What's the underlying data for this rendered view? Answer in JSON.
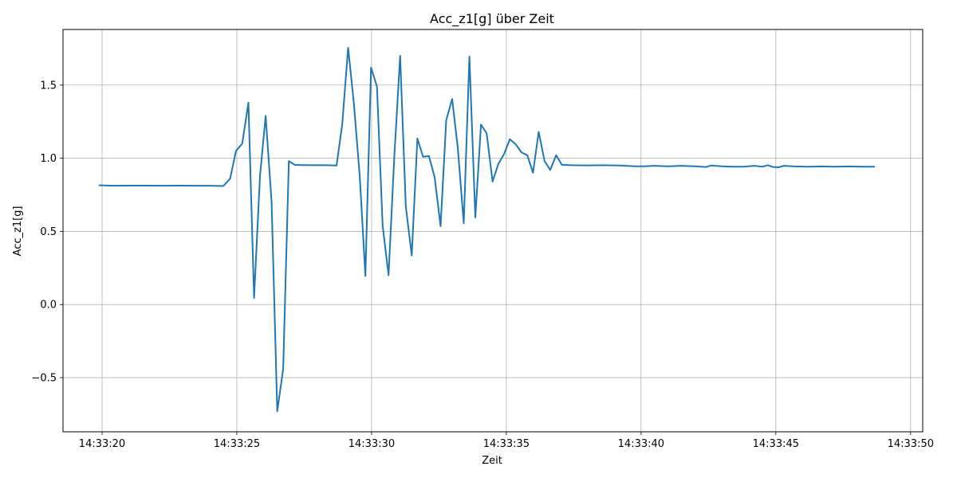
{
  "chart_data": {
    "type": "line",
    "title": "Acc_z1[g] über Zeit",
    "xlabel": "Zeit",
    "ylabel": "Acc_z1[g]",
    "grid": true,
    "x_unit": "time of day",
    "xlim": [
      "14:33:18.55",
      "14:33:50.45"
    ],
    "ylim": [
      -0.87,
      1.88
    ],
    "x_ticks": [
      "14:33:20",
      "14:33:25",
      "14:33:30",
      "14:33:35",
      "14:33:40",
      "14:33:45",
      "14:33:50"
    ],
    "y_ticks": [
      -0.5,
      0.0,
      0.5,
      1.0,
      1.5
    ],
    "y_tick_labels": [
      "−0.5",
      "0.0",
      "0.5",
      "1.0",
      "1.5"
    ],
    "series": [
      {
        "color": "#1f77b4",
        "points": [
          [
            "14:33:19.90",
            0.815
          ],
          [
            "14:33:20.40",
            0.812
          ],
          [
            "14:33:21.00",
            0.813
          ],
          [
            "14:33:21.60",
            0.813
          ],
          [
            "14:33:22.20",
            0.812
          ],
          [
            "14:33:22.80",
            0.813
          ],
          [
            "14:33:23.40",
            0.812
          ],
          [
            "14:33:24.00",
            0.812
          ],
          [
            "14:33:24.50",
            0.81
          ],
          [
            "14:33:24.75",
            0.86
          ],
          [
            "14:33:24.97",
            1.05
          ],
          [
            "14:33:25.20",
            1.1
          ],
          [
            "14:33:25.43",
            1.38
          ],
          [
            "14:33:25.64",
            0.045
          ],
          [
            "14:33:25.86",
            0.88
          ],
          [
            "14:33:26.07",
            1.29
          ],
          [
            "14:33:26.29",
            0.7
          ],
          [
            "14:33:26.50",
            -0.73
          ],
          [
            "14:33:26.72",
            -0.44
          ],
          [
            "14:33:26.93",
            0.98
          ],
          [
            "14:33:27.15",
            0.955
          ],
          [
            "14:33:27.40",
            0.953
          ],
          [
            "14:33:27.80",
            0.952
          ],
          [
            "14:33:28.30",
            0.952
          ],
          [
            "14:33:28.70",
            0.95
          ],
          [
            "14:33:28.91",
            1.23
          ],
          [
            "14:33:29.13",
            1.755
          ],
          [
            "14:33:29.34",
            1.38
          ],
          [
            "14:33:29.56",
            0.88
          ],
          [
            "14:33:29.77",
            0.195
          ],
          [
            "14:33:29.98",
            1.62
          ],
          [
            "14:33:30.20",
            1.49
          ],
          [
            "14:33:30.41",
            0.54
          ],
          [
            "14:33:30.63",
            0.2
          ],
          [
            "14:33:30.84",
            1.0
          ],
          [
            "14:33:31.06",
            1.7
          ],
          [
            "14:33:31.27",
            0.67
          ],
          [
            "14:33:31.49",
            0.335
          ],
          [
            "14:33:31.70",
            1.135
          ],
          [
            "14:33:31.91",
            1.01
          ],
          [
            "14:33:32.13",
            1.015
          ],
          [
            "14:33:32.34",
            0.87
          ],
          [
            "14:33:32.56",
            0.535
          ],
          [
            "14:33:32.77",
            1.26
          ],
          [
            "14:33:32.99",
            1.405
          ],
          [
            "14:33:33.20",
            1.07
          ],
          [
            "14:33:33.42",
            0.555
          ],
          [
            "14:33:33.63",
            1.695
          ],
          [
            "14:33:33.85",
            0.595
          ],
          [
            "14:33:34.06",
            1.23
          ],
          [
            "14:33:34.27",
            1.17
          ],
          [
            "14:33:34.49",
            0.84
          ],
          [
            "14:33:34.70",
            0.96
          ],
          [
            "14:33:34.92",
            1.03
          ],
          [
            "14:33:35.13",
            1.13
          ],
          [
            "14:33:35.35",
            1.095
          ],
          [
            "14:33:35.56",
            1.04
          ],
          [
            "14:33:35.78",
            1.02
          ],
          [
            "14:33:35.99",
            0.9
          ],
          [
            "14:33:36.20",
            1.18
          ],
          [
            "14:33:36.42",
            0.98
          ],
          [
            "14:33:36.63",
            0.92
          ],
          [
            "14:33:36.85",
            1.02
          ],
          [
            "14:33:37.06",
            0.955
          ],
          [
            "14:33:37.40",
            0.952
          ],
          [
            "14:33:38.00",
            0.951
          ],
          [
            "14:33:38.60",
            0.952
          ],
          [
            "14:33:39.20",
            0.95
          ],
          [
            "14:33:39.80",
            0.945
          ],
          [
            "14:33:40.10",
            0.945
          ],
          [
            "14:33:40.50",
            0.948
          ],
          [
            "14:33:41.00",
            0.945
          ],
          [
            "14:33:41.50",
            0.948
          ],
          [
            "14:33:42.00",
            0.945
          ],
          [
            "14:33:42.40",
            0.94
          ],
          [
            "14:33:42.60",
            0.95
          ],
          [
            "14:33:43.00",
            0.945
          ],
          [
            "14:33:43.40",
            0.942
          ],
          [
            "14:33:43.80",
            0.942
          ],
          [
            "14:33:44.20",
            0.948
          ],
          [
            "14:33:44.50",
            0.942
          ],
          [
            "14:33:44.70",
            0.952
          ],
          [
            "14:33:44.90",
            0.94
          ],
          [
            "14:33:45.10",
            0.938
          ],
          [
            "14:33:45.30",
            0.948
          ],
          [
            "14:33:45.70",
            0.944
          ],
          [
            "14:33:46.20",
            0.942
          ],
          [
            "14:33:46.70",
            0.944
          ],
          [
            "14:33:47.20",
            0.942
          ],
          [
            "14:33:47.70",
            0.944
          ],
          [
            "14:33:48.20",
            0.942
          ],
          [
            "14:33:48.65",
            0.942
          ]
        ]
      }
    ]
  }
}
